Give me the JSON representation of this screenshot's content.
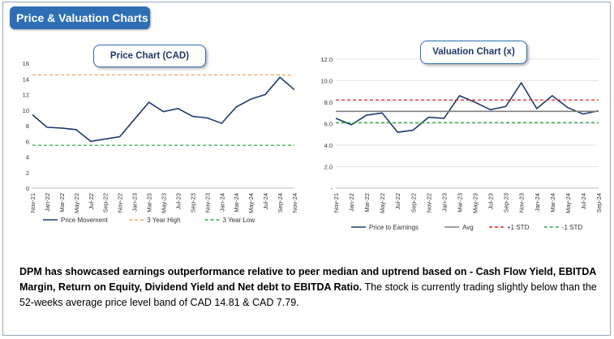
{
  "header": {
    "title": "Price & Valuation Charts"
  },
  "summary": {
    "bold_text": "DPM has showcased earnings outperformance relative to peer median and uptrend based on - Cash Flow Yield, EBITDA Margin, Return on Equity, Dividend Yield and  Net debt to EBITDA Ratio.",
    "normal_text": " The stock is currently trading slightly  below than the 52-weeks average price level band of CAD 14.81 & CAD 7.79."
  },
  "chart_data": [
    {
      "type": "line",
      "title": "Price Chart (CAD)",
      "ylim": [
        0,
        16
      ],
      "yticks": [
        "0",
        "2",
        "4",
        "6",
        "8",
        "10",
        "12",
        "14",
        "16"
      ],
      "categories": [
        "Nov-21",
        "Jan-22",
        "Mar-22",
        "May-22",
        "Jul-22",
        "Sep-22",
        "Nov-22",
        "Jan-23",
        "Mar-23",
        "May-23",
        "Jul-23",
        "Sep-23",
        "Nov-23",
        "Jan-24",
        "Mar-24",
        "May-24",
        "Jul-24",
        "Sep-24",
        "Nov-24"
      ],
      "series": [
        {
          "name": "Price Movement",
          "color": "#1f3a6e",
          "style": "solid",
          "values": [
            9.4,
            7.8,
            7.7,
            7.5,
            6.0,
            6.3,
            6.6,
            8.8,
            11.0,
            9.8,
            10.2,
            9.2,
            9.0,
            8.3,
            10.4,
            11.4,
            12.0,
            14.2,
            12.6
          ]
        },
        {
          "name": "3 Year High",
          "color": "#f4a460",
          "style": "dashed",
          "values": [
            14.5,
            14.5,
            14.5,
            14.5,
            14.5,
            14.5,
            14.5,
            14.5,
            14.5,
            14.5,
            14.5,
            14.5,
            14.5,
            14.5,
            14.5,
            14.5,
            14.5,
            14.5,
            14.5
          ]
        },
        {
          "name": "3 Year Low",
          "color": "#2ea84a",
          "style": "dashed",
          "values": [
            5.5,
            5.5,
            5.5,
            5.5,
            5.5,
            5.5,
            5.5,
            5.5,
            5.5,
            5.5,
            5.5,
            5.5,
            5.5,
            5.5,
            5.5,
            5.5,
            5.5,
            5.5,
            5.5
          ]
        }
      ],
      "legend_position": "bottom"
    },
    {
      "type": "line",
      "title": "Valuation Chart (x)",
      "ylim": [
        0,
        12
      ],
      "yticks": [
        "-",
        "2.0",
        "4.0",
        "6.0",
        "8.0",
        "10.0",
        "12.0"
      ],
      "categories": [
        "Nov-21",
        "Jan-22",
        "Mar-22",
        "May-22",
        "Jul-22",
        "Sep-22",
        "Nov-22",
        "Jan-23",
        "Mar-23",
        "May-23",
        "Jul-23",
        "Sep-23",
        "Nov-23",
        "Jan-24",
        "Mar-24",
        "May-24",
        "Jul-24",
        "Sep-24"
      ],
      "series": [
        {
          "name": "Price to Earnings",
          "color": "#1f3a6e",
          "style": "solid",
          "values": [
            6.5,
            5.9,
            6.8,
            7.0,
            5.2,
            5.4,
            6.6,
            6.5,
            8.6,
            8.0,
            7.3,
            7.6,
            9.8,
            7.4,
            8.6,
            7.5,
            6.9,
            7.2
          ]
        },
        {
          "name": "Avg",
          "color": "#7f7f7f",
          "style": "solid",
          "values": [
            7.15,
            7.15,
            7.15,
            7.15,
            7.15,
            7.15,
            7.15,
            7.15,
            7.15,
            7.15,
            7.15,
            7.15,
            7.15,
            7.15,
            7.15,
            7.15,
            7.15,
            7.15
          ]
        },
        {
          "name": "+1 STD",
          "color": "#e02020",
          "style": "dashed",
          "values": [
            8.2,
            8.2,
            8.2,
            8.2,
            8.2,
            8.2,
            8.2,
            8.2,
            8.2,
            8.2,
            8.2,
            8.2,
            8.2,
            8.2,
            8.2,
            8.2,
            8.2,
            8.2
          ]
        },
        {
          "name": "-1 STD",
          "color": "#2ea84a",
          "style": "dashed",
          "values": [
            6.1,
            6.1,
            6.1,
            6.1,
            6.1,
            6.1,
            6.1,
            6.1,
            6.1,
            6.1,
            6.1,
            6.1,
            6.1,
            6.1,
            6.1,
            6.1,
            6.1,
            6.1
          ]
        }
      ],
      "legend_position": "bottom"
    }
  ]
}
